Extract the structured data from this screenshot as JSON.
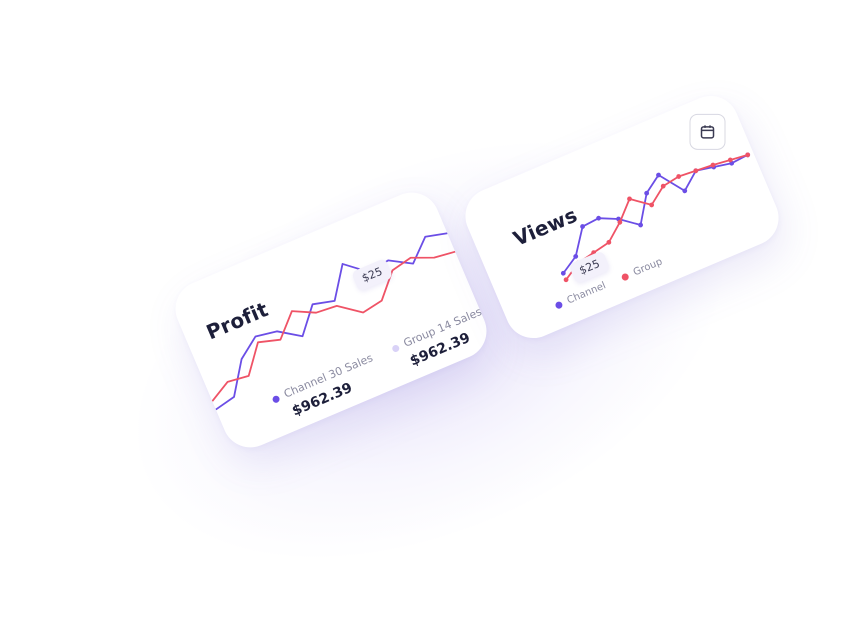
{
  "colors": {
    "primary": "#6b4ee6",
    "secondary": "#ef5366",
    "faded_primary": "#d9d2f7"
  },
  "profit": {
    "title": "Profit",
    "tooltip": "$25",
    "legend": [
      {
        "label": "Channel 30 Sales",
        "value": "$962.39",
        "color": "#6b4ee6"
      },
      {
        "label": "Group 14 Sales",
        "value": "$962.39",
        "color": "#d9d2f7"
      }
    ]
  },
  "views": {
    "title": "Views",
    "tooltip": "$25",
    "calendar_icon": "calendar-icon",
    "legend": [
      {
        "label": "Channel",
        "color": "#6b4ee6"
      },
      {
        "label": "Group",
        "color": "#ef5366"
      }
    ]
  },
  "chart_data": [
    {
      "type": "line",
      "title": "Profit",
      "x": [
        0,
        1,
        2,
        3,
        4,
        5,
        6,
        7,
        8,
        9,
        10,
        11,
        12,
        13
      ],
      "series": [
        {
          "name": "Channel 30 Sales",
          "color": "#6b4ee6",
          "values": [
            5,
            10,
            45,
            62,
            58,
            42,
            70,
            64,
            98,
            78,
            82,
            68,
            90,
            84
          ]
        },
        {
          "name": "Group 14 Sales",
          "color": "#ef5366",
          "values": [
            15,
            28,
            25,
            55,
            48,
            72,
            60,
            58,
            40,
            44,
            70,
            75,
            65,
            62
          ]
        }
      ],
      "ylim": [
        0,
        110
      ]
    },
    {
      "type": "line",
      "title": "Views",
      "x": [
        0,
        1,
        2,
        3,
        4,
        5,
        6,
        7,
        8,
        9,
        10,
        11,
        12
      ],
      "series": [
        {
          "name": "Channel",
          "color": "#6b4ee6",
          "values": [
            20,
            35,
            70,
            72,
            60,
            40,
            78,
            95,
            60,
            80,
            75,
            70,
            72
          ]
        },
        {
          "name": "Group",
          "color": "#ef5366",
          "values": [
            10,
            25,
            30,
            35,
            55,
            80,
            60,
            78,
            82,
            80,
            78,
            75,
            72
          ]
        }
      ],
      "ylim": [
        0,
        110
      ]
    }
  ]
}
